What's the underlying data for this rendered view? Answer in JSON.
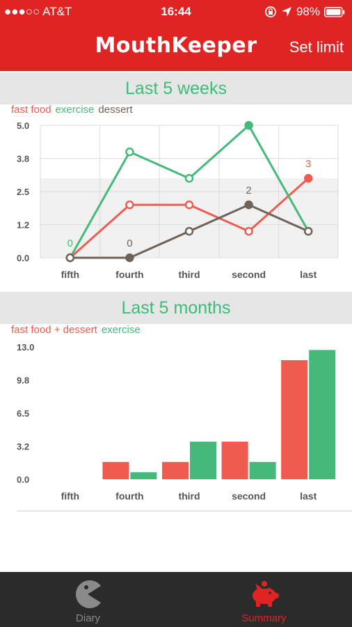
{
  "status_bar": {
    "carrier": "●●●○○ AT&T",
    "time": "16:44",
    "battery": "98%"
  },
  "nav": {
    "title": "MouthKeeper",
    "set_limit": "Set limit"
  },
  "weeks_section": {
    "title": "Last 5 weeks"
  },
  "months_section": {
    "title": "Last 5 months"
  },
  "tabs": [
    {
      "label": "Diary",
      "icon": "pacman-icon",
      "color": "#8a8a8a"
    },
    {
      "label": "Summary",
      "icon": "piggy-bank-icon",
      "color": "#e02424"
    }
  ],
  "colors": {
    "red": "#f05b4f",
    "green": "#45b97a",
    "brown": "#6f6258",
    "brand": "#e02424"
  },
  "chart_data": [
    {
      "type": "line",
      "categories": [
        "fifth",
        "fourth",
        "third",
        "second",
        "last"
      ],
      "yticks": [
        "0.0",
        "1.2",
        "2.5",
        "3.8",
        "5.0"
      ],
      "ylim": [
        0,
        5
      ],
      "limit_band": [
        0,
        3
      ],
      "series": [
        {
          "name": "fast food",
          "color": "#f05b4f",
          "values": [
            0,
            2,
            2,
            1,
            3
          ]
        },
        {
          "name": "exercise",
          "color": "#45b97a",
          "values": [
            0,
            4,
            3,
            5,
            1
          ]
        },
        {
          "name": "dessert",
          "color": "#6f6258",
          "values": [
            0,
            0,
            1,
            2,
            1
          ]
        }
      ],
      "labels": [
        {
          "series": 1,
          "index": 0,
          "text": "0"
        },
        {
          "series": 2,
          "index": 1,
          "text": "0"
        },
        {
          "series": 2,
          "index": 3,
          "text": "2"
        },
        {
          "series": 0,
          "index": 4,
          "text": "3"
        }
      ],
      "grid": true
    },
    {
      "type": "bar",
      "categories": [
        "fifth",
        "fourth",
        "third",
        "second",
        "last"
      ],
      "yticks": [
        "0.0",
        "3.2",
        "6.5",
        "9.8",
        "13.0"
      ],
      "ylim": [
        0,
        13
      ],
      "series": [
        {
          "name": "fast food + dessert",
          "color": "#f05b4f",
          "values": [
            0,
            1.7,
            1.7,
            3.7,
            11.7
          ]
        },
        {
          "name": "exercise",
          "color": "#45b97a",
          "values": [
            0,
            0.7,
            3.7,
            1.7,
            12.7
          ]
        }
      ],
      "grid": false
    }
  ]
}
